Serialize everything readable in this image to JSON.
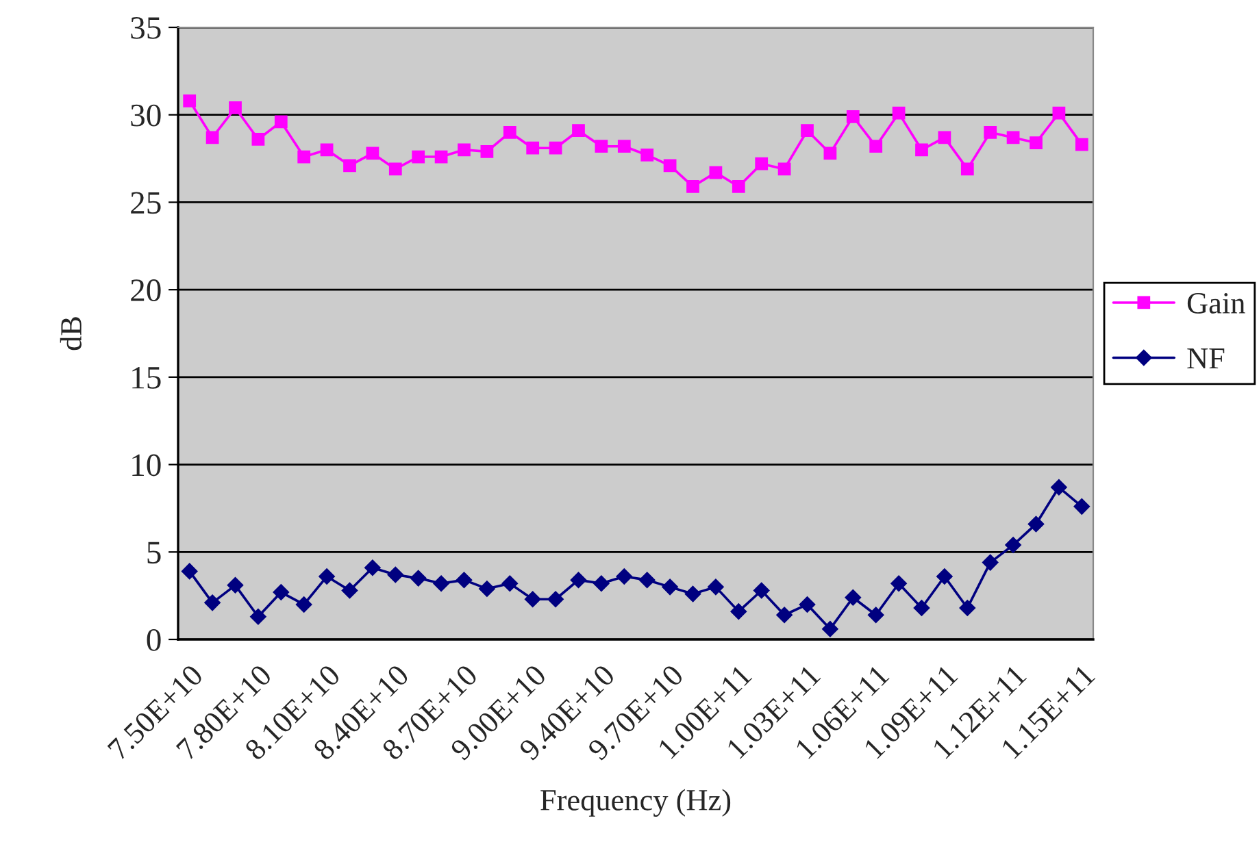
{
  "chart_data": {
    "type": "line",
    "xlabel": "Frequency (Hz)",
    "ylabel": "dB",
    "categories": [
      "7.50E+10",
      null,
      null,
      "7.80E+10",
      null,
      null,
      "8.10E+10",
      null,
      null,
      "8.40E+10",
      null,
      null,
      "8.70E+10",
      null,
      null,
      "9.00E+10",
      null,
      null,
      "9.40E+10",
      null,
      null,
      "9.70E+10",
      null,
      null,
      "1.00E+11",
      null,
      null,
      "1.03E+11",
      null,
      null,
      "1.06E+11",
      null,
      null,
      "1.09E+11",
      null,
      null,
      "1.12E+11",
      null,
      null,
      "1.15E+11"
    ],
    "series": [
      {
        "name": "Gain",
        "color": "#ff00ff",
        "marker": "square",
        "values": [
          30.8,
          28.7,
          30.4,
          28.6,
          29.6,
          27.6,
          28.0,
          27.1,
          27.8,
          26.9,
          27.6,
          27.6,
          28.0,
          27.9,
          29.0,
          28.1,
          28.1,
          29.1,
          28.2,
          28.2,
          27.7,
          27.1,
          25.9,
          26.7,
          25.9,
          27.2,
          26.9,
          29.1,
          27.8,
          29.9,
          28.2,
          30.1,
          28.0,
          28.7,
          26.9,
          29.0,
          28.7,
          28.4,
          30.1,
          28.3
        ]
      },
      {
        "name": "NF",
        "color": "#000080",
        "marker": "diamond",
        "values": [
          3.9,
          2.1,
          3.1,
          1.3,
          2.7,
          2.0,
          3.6,
          2.8,
          4.1,
          3.7,
          3.5,
          3.2,
          3.4,
          2.9,
          3.2,
          2.3,
          2.3,
          3.4,
          3.2,
          3.6,
          3.4,
          3.0,
          2.6,
          3.0,
          1.6,
          2.8,
          1.4,
          2.0,
          0.6,
          2.4,
          1.4,
          3.2,
          1.8,
          3.6,
          1.8,
          4.4,
          5.4,
          6.6,
          8.7,
          7.6
        ]
      }
    ],
    "ylim": [
      0,
      35
    ],
    "yticks": [
      0,
      5,
      10,
      15,
      20,
      25,
      30,
      35
    ],
    "grid": "y",
    "legend": "right",
    "line_style": "solid"
  }
}
